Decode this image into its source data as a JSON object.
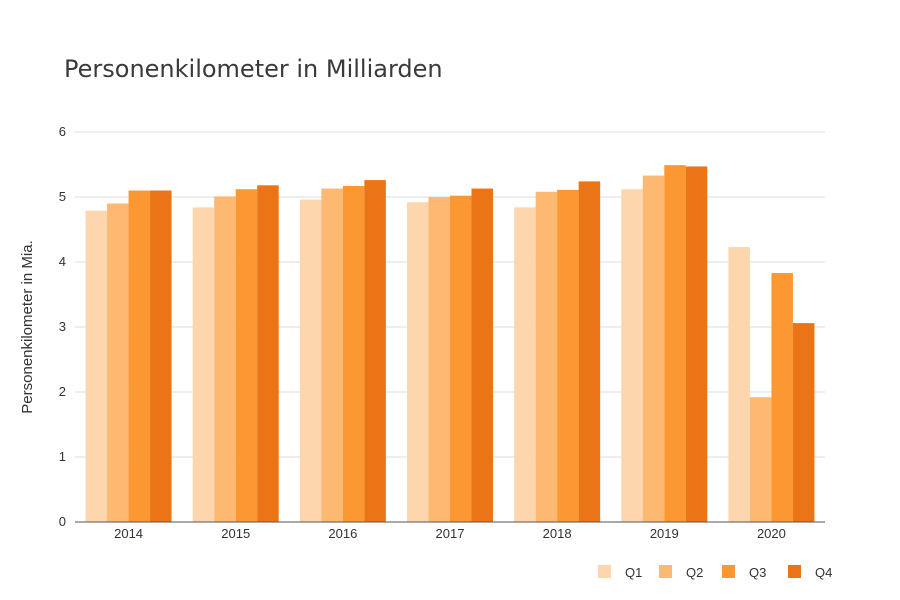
{
  "chart_data": {
    "type": "bar",
    "title": "Personenkilometer in Milliarden",
    "ylabel": "Personenkilometer in Mia.",
    "xlabel": "",
    "categories": [
      "2014",
      "2015",
      "2016",
      "2017",
      "2018",
      "2019",
      "2020"
    ],
    "series": [
      {
        "name": "Q1",
        "color": "#fdd6ad",
        "values": [
          4.79,
          4.84,
          4.96,
          4.92,
          4.84,
          5.12,
          4.23
        ]
      },
      {
        "name": "Q2",
        "color": "#fdb872",
        "values": [
          4.9,
          5.01,
          5.13,
          5.0,
          5.08,
          5.33,
          1.92
        ]
      },
      {
        "name": "Q3",
        "color": "#fb9832",
        "values": [
          5.1,
          5.12,
          5.17,
          5.02,
          5.11,
          5.49,
          3.83
        ]
      },
      {
        "name": "Q4",
        "color": "#ea7416",
        "values": [
          5.1,
          5.18,
          5.26,
          5.13,
          5.24,
          5.47,
          3.06
        ]
      }
    ],
    "ylim": [
      0,
      6
    ],
    "yticks": [
      "0",
      "1",
      "2",
      "3",
      "4",
      "5",
      "6"
    ],
    "grid": true,
    "legend_position": "bottom-right"
  }
}
